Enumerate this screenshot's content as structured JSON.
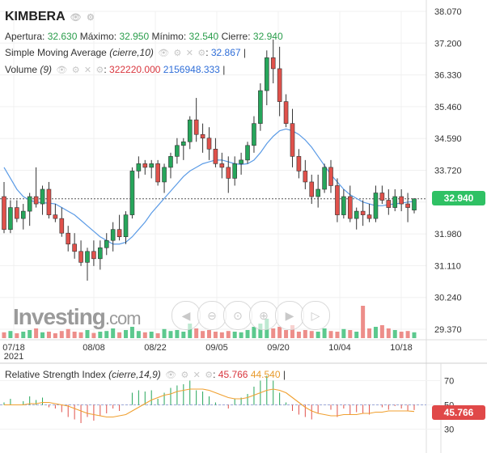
{
  "header": {
    "symbol": "KIMBERA",
    "apertura_label": "Apertura:",
    "apertura": "32.630",
    "maximo_label": "Máximo:",
    "maximo": "32.950",
    "minimo_label": "Mínimo:",
    "minimo": "32.540",
    "cierre_label": "Cierre:",
    "cierre": "32.940"
  },
  "sma_legend": {
    "name": "Simple Moving Average",
    "params": "(cierre,10)",
    "value": "32.867"
  },
  "volume_legend": {
    "name": "Volume",
    "params": "(9)",
    "value1": "322220.000",
    "value2": "2156948.333"
  },
  "rsi_legend": {
    "name": "Relative Strength Index",
    "params": "(cierre,14,9)",
    "value1": "45.766",
    "value2": "44.540"
  },
  "current_price_tag": "32.940",
  "rsi_tag": "45.766",
  "watermark": {
    "brand": "Investing",
    "suffix": ".com"
  },
  "nav_buttons": [
    "scroll-left",
    "zoom-out",
    "zoom-reset",
    "zoom-in",
    "scroll-right-end",
    "scroll-right"
  ],
  "colors": {
    "up": "#26a65b",
    "down": "#e0514b",
    "sma": "#5b9be6",
    "rsi_signal": "#f0a030",
    "tag_price": "#2fc164",
    "tag_rsi": "#e04848"
  },
  "chart_data": [
    {
      "type": "candlestick",
      "title": "KIMBERA",
      "x_ticks": [
        "07/18\n2021",
        "08/08",
        "08/22",
        "09/05",
        "09/20",
        "10/04",
        "10/18"
      ],
      "y_ticks": [
        "38.070",
        "37.200",
        "36.330",
        "35.460",
        "34.590",
        "33.720",
        "32.850",
        "31.980",
        "31.110",
        "30.240",
        "29.370"
      ],
      "ylim": [
        29.37,
        38.07
      ],
      "last_price": 32.94,
      "ohlc": [
        [
          33.0,
          33.4,
          32.0,
          32.1
        ],
        [
          32.1,
          32.9,
          32.0,
          32.7
        ],
        [
          32.7,
          32.9,
          32.3,
          32.4
        ],
        [
          32.4,
          32.8,
          32.1,
          32.6
        ],
        [
          32.6,
          33.1,
          32.2,
          33.0
        ],
        [
          33.0,
          33.8,
          32.7,
          32.8
        ],
        [
          32.8,
          33.3,
          32.5,
          33.2
        ],
        [
          33.2,
          33.4,
          32.4,
          32.5
        ],
        [
          32.5,
          32.8,
          32.3,
          32.4
        ],
        [
          32.4,
          32.7,
          31.9,
          32.0
        ],
        [
          32.0,
          32.2,
          31.5,
          31.7
        ],
        [
          31.7,
          32.0,
          31.3,
          31.5
        ],
        [
          31.5,
          31.8,
          31.1,
          31.2
        ],
        [
          31.2,
          31.6,
          30.7,
          31.5
        ],
        [
          31.5,
          31.8,
          31.1,
          31.3
        ],
        [
          31.3,
          31.8,
          31.0,
          31.6
        ],
        [
          31.6,
          32.0,
          31.4,
          31.8
        ],
        [
          31.8,
          32.3,
          31.5,
          32.1
        ],
        [
          32.1,
          32.5,
          31.8,
          31.9
        ],
        [
          31.9,
          32.6,
          31.7,
          32.5
        ],
        [
          32.5,
          33.8,
          32.4,
          33.7
        ],
        [
          33.7,
          34.1,
          33.5,
          33.9
        ],
        [
          33.9,
          34.0,
          33.6,
          33.8
        ],
        [
          33.8,
          34.0,
          33.5,
          33.9
        ],
        [
          33.9,
          34.0,
          33.3,
          33.4
        ],
        [
          33.4,
          33.9,
          33.1,
          33.8
        ],
        [
          33.8,
          34.2,
          33.5,
          34.1
        ],
        [
          34.1,
          34.6,
          33.9,
          34.4
        ],
        [
          34.4,
          34.6,
          34.0,
          34.5
        ],
        [
          34.5,
          35.2,
          34.3,
          35.1
        ],
        [
          35.1,
          35.7,
          34.5,
          34.7
        ],
        [
          34.7,
          35.0,
          34.2,
          34.6
        ],
        [
          34.6,
          34.9,
          34.0,
          34.3
        ],
        [
          34.3,
          34.6,
          33.8,
          33.9
        ],
        [
          33.9,
          34.2,
          33.5,
          33.8
        ],
        [
          33.8,
          34.1,
          33.1,
          33.5
        ],
        [
          33.5,
          34.1,
          33.3,
          33.9
        ],
        [
          33.9,
          34.2,
          33.6,
          34.0
        ],
        [
          34.0,
          34.5,
          33.9,
          34.4
        ],
        [
          34.4,
          35.2,
          34.2,
          35.0
        ],
        [
          35.0,
          36.1,
          34.8,
          35.9
        ],
        [
          35.9,
          37.0,
          35.5,
          36.8
        ],
        [
          36.8,
          37.3,
          36.1,
          36.5
        ],
        [
          36.5,
          37.1,
          35.2,
          35.6
        ],
        [
          35.6,
          35.8,
          34.9,
          35.0
        ],
        [
          35.0,
          35.4,
          33.8,
          34.1
        ],
        [
          34.1,
          34.3,
          33.5,
          33.7
        ],
        [
          33.7,
          34.0,
          33.2,
          33.4
        ],
        [
          33.4,
          33.6,
          32.8,
          33.0
        ],
        [
          33.0,
          33.6,
          32.7,
          33.2
        ],
        [
          33.2,
          33.9,
          33.1,
          33.8
        ],
        [
          33.8,
          34.0,
          33.1,
          33.3
        ],
        [
          33.3,
          33.5,
          32.3,
          32.5
        ],
        [
          32.5,
          33.2,
          32.4,
          33.0
        ],
        [
          33.0,
          33.3,
          32.3,
          32.4
        ],
        [
          32.4,
          32.7,
          32.1,
          32.6
        ],
        [
          32.6,
          32.9,
          32.2,
          32.5
        ],
        [
          32.5,
          32.8,
          32.3,
          32.4
        ],
        [
          32.4,
          33.3,
          32.3,
          33.1
        ],
        [
          33.1,
          33.3,
          32.8,
          32.9
        ],
        [
          32.9,
          33.2,
          32.5,
          32.7
        ],
        [
          32.7,
          33.2,
          32.6,
          33.0
        ],
        [
          33.0,
          33.2,
          32.6,
          32.8
        ],
        [
          32.8,
          33.1,
          32.3,
          32.7
        ],
        [
          32.63,
          32.95,
          32.54,
          32.94
        ]
      ],
      "sma_10": [
        33.8,
        33.5,
        33.2,
        33.0,
        32.9,
        32.85,
        32.83,
        32.82,
        32.8,
        32.7,
        32.6,
        32.5,
        32.35,
        32.2,
        32.05,
        31.9,
        31.8,
        31.7,
        31.7,
        31.75,
        31.9,
        32.1,
        32.3,
        32.55,
        32.75,
        32.95,
        33.15,
        33.35,
        33.55,
        33.7,
        33.8,
        33.9,
        33.95,
        34.0,
        34.0,
        33.95,
        33.9,
        33.88,
        33.9,
        34.0,
        34.2,
        34.45,
        34.65,
        34.8,
        34.85,
        34.8,
        34.7,
        34.55,
        34.35,
        34.1,
        33.85,
        33.6,
        33.4,
        33.2,
        33.05,
        32.95,
        32.85,
        32.8,
        32.75,
        32.75,
        32.78,
        32.8,
        32.82,
        32.85,
        32.867
      ],
      "volume": [
        0.18,
        0.22,
        0.15,
        0.2,
        0.25,
        0.3,
        0.18,
        0.2,
        0.15,
        0.22,
        0.28,
        0.2,
        0.18,
        0.25,
        0.16,
        0.2,
        0.22,
        0.3,
        0.18,
        0.25,
        0.35,
        0.22,
        0.18,
        0.2,
        0.15,
        0.28,
        0.22,
        0.25,
        0.2,
        0.45,
        0.3,
        0.22,
        0.25,
        0.2,
        0.18,
        0.22,
        0.2,
        0.18,
        0.25,
        0.35,
        0.45,
        0.6,
        0.3,
        0.35,
        0.25,
        0.4,
        0.2,
        0.25,
        0.22,
        0.2,
        0.3,
        0.22,
        0.2,
        0.28,
        0.25,
        0.2,
        1.0,
        0.3,
        0.35,
        0.4,
        0.3,
        0.25,
        0.2,
        0.22,
        0.18
      ]
    },
    {
      "type": "line",
      "title": "Relative Strength Index",
      "y_ticks": [
        "70",
        "50",
        "30"
      ],
      "ylim": [
        25,
        75
      ],
      "reference_level": 50,
      "rsi": [
        52,
        55,
        50,
        53,
        57,
        54,
        56,
        48,
        47,
        44,
        40,
        38,
        35,
        40,
        37,
        41,
        43,
        47,
        45,
        50,
        60,
        62,
        61,
        62,
        55,
        60,
        64,
        66,
        67,
        70,
        62,
        61,
        57,
        52,
        50,
        47,
        55,
        56,
        59,
        65,
        70,
        74,
        70,
        60,
        52,
        45,
        42,
        40,
        38,
        43,
        50,
        46,
        40,
        47,
        42,
        44,
        43,
        42,
        50,
        48,
        46,
        49,
        47,
        45,
        45.766
      ],
      "rsi_signal": [
        50,
        50,
        50,
        50,
        51,
        51,
        52,
        52,
        51,
        50,
        49,
        47,
        45,
        43,
        42,
        41,
        40,
        40,
        41,
        42,
        45,
        48,
        51,
        54,
        56,
        58,
        59,
        61,
        62,
        63,
        63,
        63,
        62,
        60,
        58,
        56,
        55,
        55,
        56,
        58,
        60,
        62,
        63,
        62,
        60,
        56,
        52,
        48,
        45,
        43,
        42,
        41,
        41,
        42,
        42,
        42,
        43,
        43,
        44,
        44,
        45,
        45,
        45,
        45,
        44.54
      ]
    }
  ]
}
